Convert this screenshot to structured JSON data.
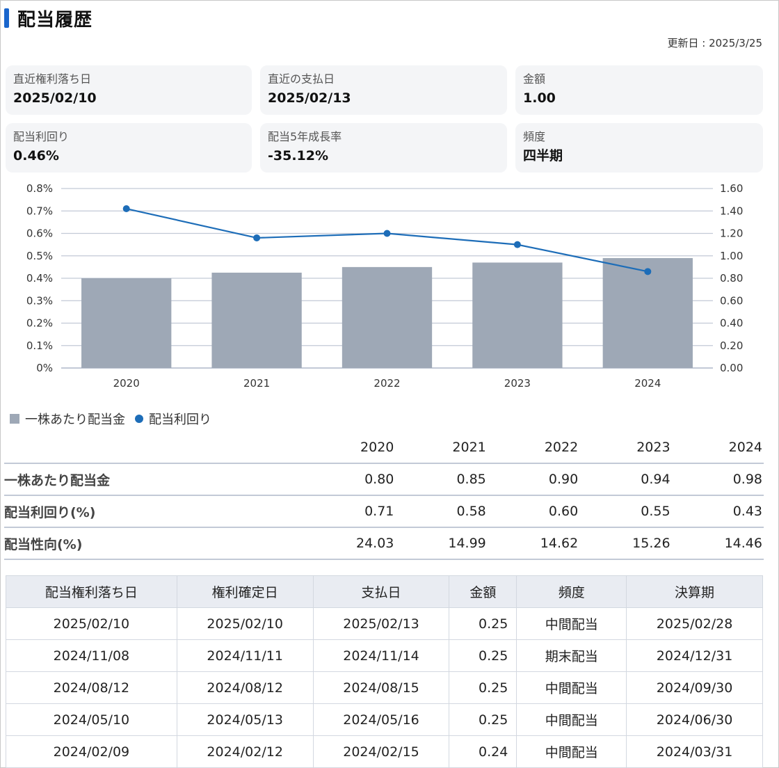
{
  "header": {
    "title": "配当履歴",
    "updated": "更新日 : 2025/3/25"
  },
  "cards": [
    {
      "label": "直近権利落ち日",
      "value": "2025/02/10"
    },
    {
      "label": "直近の支払日",
      "value": "2025/02/13"
    },
    {
      "label": "金額",
      "value": "1.00"
    },
    {
      "label": "配当利回り",
      "value": "0.46%"
    },
    {
      "label": "配当5年成長率",
      "value": "-35.12%"
    },
    {
      "label": "頻度",
      "value": "四半期"
    }
  ],
  "chart_data": {
    "type": "bar",
    "categories": [
      "2020",
      "2021",
      "2022",
      "2023",
      "2024"
    ],
    "series": [
      {
        "name": "一株あたり配当金",
        "type": "bar",
        "axis": "right",
        "values": [
          0.8,
          0.85,
          0.9,
          0.94,
          0.98
        ]
      },
      {
        "name": "配当利回り",
        "type": "line",
        "axis": "left",
        "values": [
          0.71,
          0.58,
          0.6,
          0.55,
          0.43
        ]
      }
    ],
    "left_axis": {
      "ticks": [
        "0%",
        "0.1%",
        "0.2%",
        "0.3%",
        "0.4%",
        "0.5%",
        "0.6%",
        "0.7%",
        "0.8%"
      ],
      "range": [
        0,
        0.8
      ]
    },
    "right_axis": {
      "ticks": [
        "0.00",
        "0.20",
        "0.40",
        "0.60",
        "0.80",
        "1.00",
        "1.20",
        "1.40",
        "1.60"
      ],
      "range": [
        0,
        1.6
      ]
    },
    "grid": true,
    "legend_placement": "bottom-left",
    "colors": {
      "bar": "#9ea8b6",
      "line": "#1d6db8",
      "grid": "#c2c9d6"
    }
  },
  "summary_table": {
    "years": [
      "2020",
      "2021",
      "2022",
      "2023",
      "2024"
    ],
    "rows": [
      {
        "label": "一株あたり配当金",
        "values": [
          "0.80",
          "0.85",
          "0.90",
          "0.94",
          "0.98"
        ]
      },
      {
        "label": "配当利回り(%)",
        "values": [
          "0.71",
          "0.58",
          "0.60",
          "0.55",
          "0.43"
        ]
      },
      {
        "label": "配当性向(%)",
        "values": [
          "24.03",
          "14.99",
          "14.62",
          "15.26",
          "14.46"
        ]
      }
    ]
  },
  "history_table": {
    "headers": [
      "配当権利落ち日",
      "権利確定日",
      "支払日",
      "金額",
      "頻度",
      "決算期"
    ],
    "rows": [
      [
        "2025/02/10",
        "2025/02/10",
        "2025/02/13",
        "0.25",
        "中間配当",
        "2025/02/28"
      ],
      [
        "2024/11/08",
        "2024/11/11",
        "2024/11/14",
        "0.25",
        "期末配当",
        "2024/12/31"
      ],
      [
        "2024/08/12",
        "2024/08/12",
        "2024/08/15",
        "0.25",
        "中間配当",
        "2024/09/30"
      ],
      [
        "2024/05/10",
        "2024/05/13",
        "2024/05/16",
        "0.25",
        "中間配当",
        "2024/06/30"
      ],
      [
        "2024/02/09",
        "2024/02/12",
        "2024/02/15",
        "0.24",
        "中間配当",
        "2024/03/31"
      ]
    ]
  }
}
